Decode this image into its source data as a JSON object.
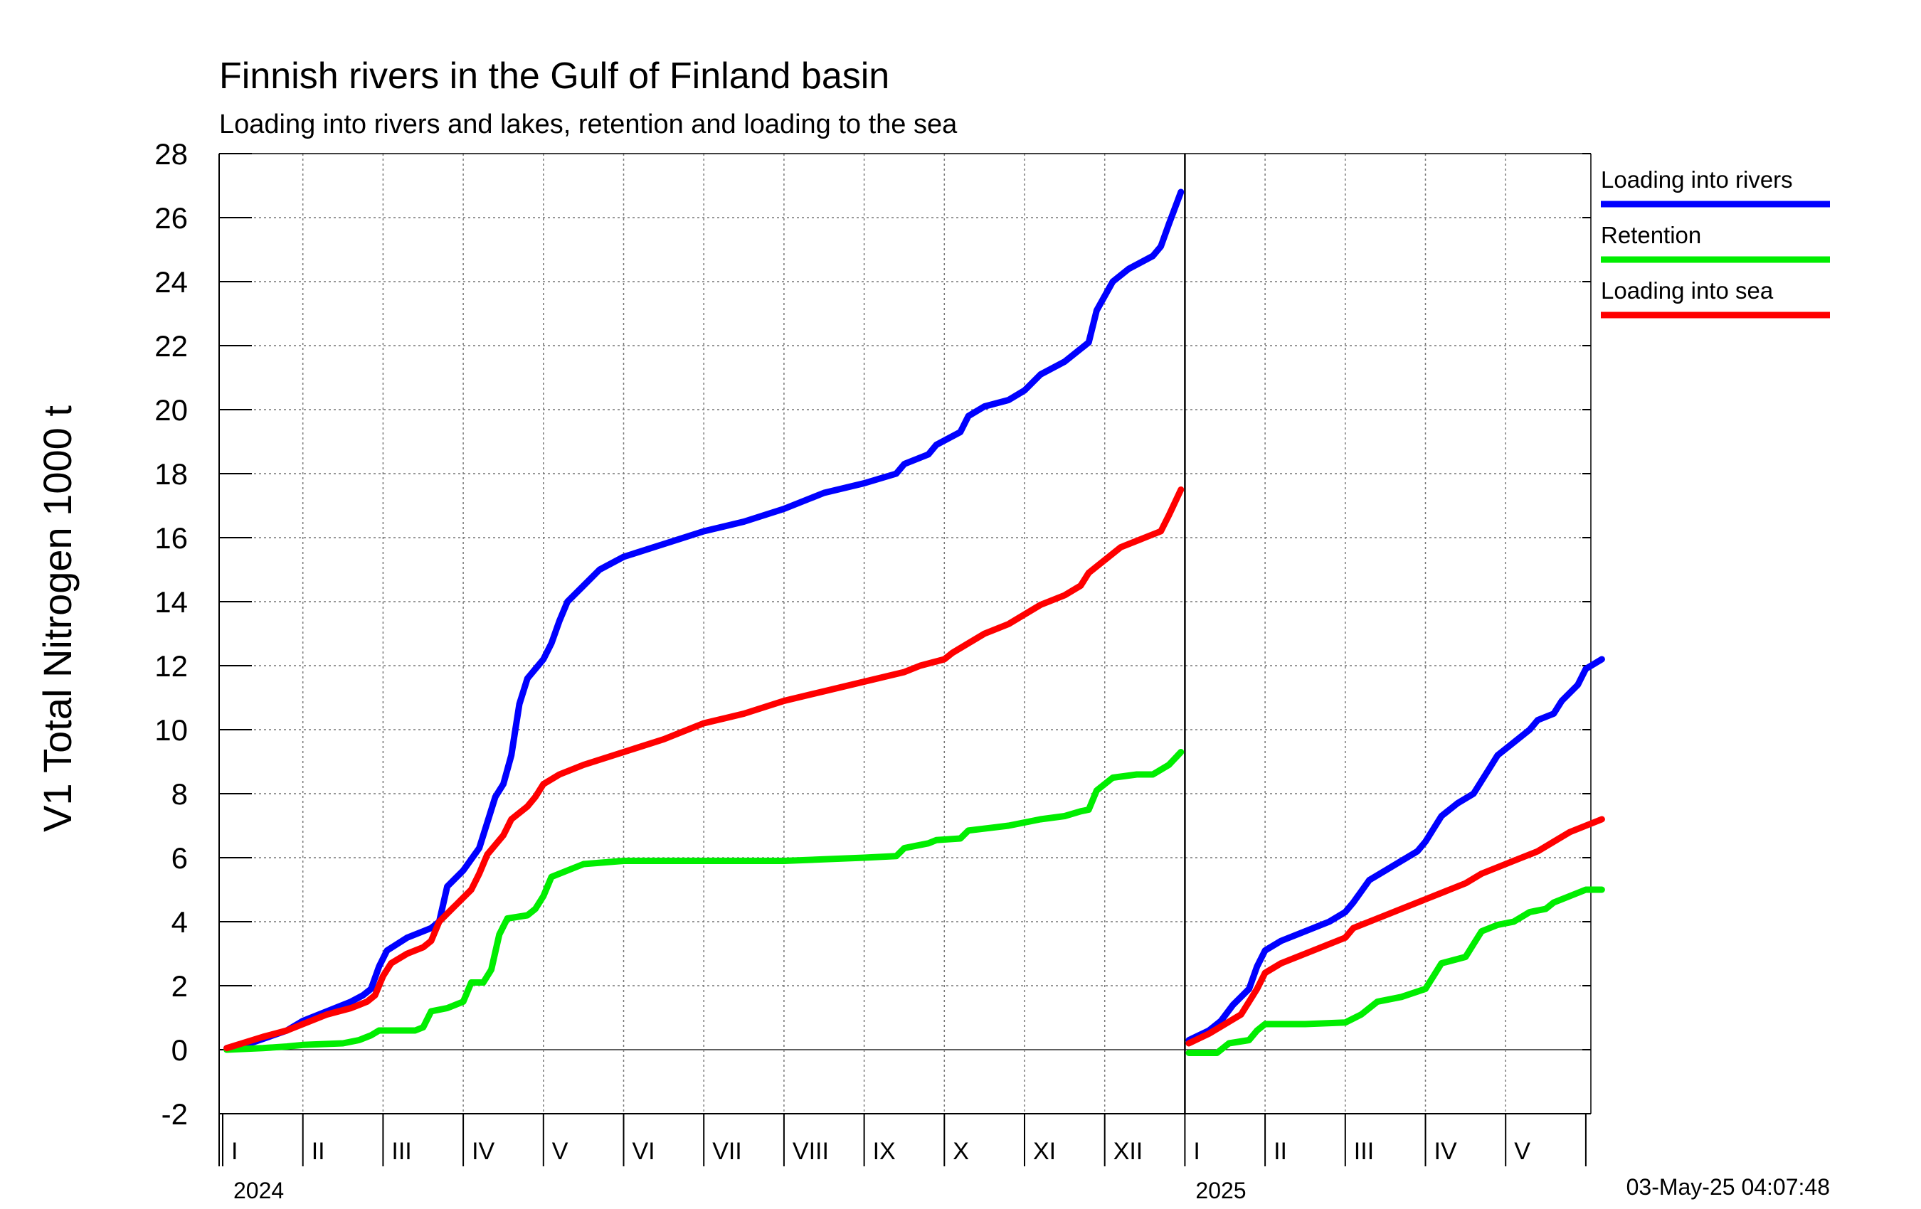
{
  "chart_data": {
    "type": "line",
    "title": "Finnish rivers in the Gulf of Finland basin",
    "subtitle": "Loading into rivers and lakes, retention and loading to the sea",
    "ylabel": "V1 Total Nitrogen 1000 t",
    "ylim": [
      -2,
      28
    ],
    "yticks": [
      -2,
      0,
      2,
      4,
      6,
      8,
      10,
      12,
      14,
      16,
      18,
      20,
      22,
      24,
      26,
      28
    ],
    "grid": true,
    "legend_position": "right",
    "timestamp": "03-May-25 04:07:48",
    "x_unit": "month index from January 2024 (0 = start of January 2024)",
    "xlim": [
      0,
      17.1
    ],
    "month_labels": [
      "I",
      "II",
      "III",
      "IV",
      "V",
      "VI",
      "VII",
      "VIII",
      "IX",
      "X",
      "XI",
      "XII",
      "I",
      "II",
      "III",
      "IV",
      "V"
    ],
    "years": [
      {
        "label": "2024",
        "month_index": 0
      },
      {
        "label": "2025",
        "month_index": 12
      }
    ],
    "series": [
      {
        "name": "Loading into rivers",
        "color": "#0000ff",
        "segments": [
          [
            [
              0.05,
              0.05
            ],
            [
              0.4,
              0.25
            ],
            [
              0.8,
              0.6
            ],
            [
              1.0,
              0.9
            ],
            [
              1.3,
              1.2
            ],
            [
              1.6,
              1.5
            ],
            [
              1.75,
              1.7
            ],
            [
              1.85,
              1.9
            ],
            [
              1.95,
              2.6
            ],
            [
              2.05,
              3.1
            ],
            [
              2.3,
              3.5
            ],
            [
              2.5,
              3.7
            ],
            [
              2.6,
              3.8
            ],
            [
              2.7,
              4.0
            ],
            [
              2.8,
              5.1
            ],
            [
              3.0,
              5.6
            ],
            [
              3.2,
              6.3
            ],
            [
              3.3,
              7.1
            ],
            [
              3.4,
              7.9
            ],
            [
              3.5,
              8.3
            ],
            [
              3.6,
              9.2
            ],
            [
              3.7,
              10.8
            ],
            [
              3.8,
              11.6
            ],
            [
              4.0,
              12.2
            ],
            [
              4.1,
              12.7
            ],
            [
              4.2,
              13.4
            ],
            [
              4.3,
              14.0
            ],
            [
              4.5,
              14.5
            ],
            [
              4.7,
              15.0
            ],
            [
              5.0,
              15.4
            ],
            [
              5.5,
              15.8
            ],
            [
              6.0,
              16.2
            ],
            [
              6.5,
              16.5
            ],
            [
              7.0,
              16.9
            ],
            [
              7.5,
              17.4
            ],
            [
              8.0,
              17.7
            ],
            [
              8.4,
              18.0
            ],
            [
              8.5,
              18.3
            ],
            [
              8.8,
              18.6
            ],
            [
              8.9,
              18.9
            ],
            [
              9.2,
              19.3
            ],
            [
              9.3,
              19.8
            ],
            [
              9.5,
              20.1
            ],
            [
              9.8,
              20.3
            ],
            [
              10.0,
              20.6
            ],
            [
              10.2,
              21.1
            ],
            [
              10.5,
              21.5
            ],
            [
              10.7,
              21.9
            ],
            [
              10.8,
              22.1
            ],
            [
              10.9,
              23.1
            ],
            [
              11.1,
              24.0
            ],
            [
              11.3,
              24.4
            ],
            [
              11.6,
              24.8
            ],
            [
              11.7,
              25.1
            ],
            [
              11.8,
              25.8
            ],
            [
              11.95,
              26.8
            ]
          ],
          [
            [
              12.05,
              0.3
            ],
            [
              12.3,
              0.6
            ],
            [
              12.45,
              0.9
            ],
            [
              12.6,
              1.4
            ],
            [
              12.8,
              1.9
            ],
            [
              12.9,
              2.6
            ],
            [
              13.0,
              3.1
            ],
            [
              13.2,
              3.4
            ],
            [
              13.5,
              3.7
            ],
            [
              13.8,
              4.0
            ],
            [
              14.0,
              4.3
            ],
            [
              14.1,
              4.6
            ],
            [
              14.3,
              5.3
            ],
            [
              14.5,
              5.6
            ],
            [
              14.7,
              5.9
            ],
            [
              14.9,
              6.2
            ],
            [
              15.0,
              6.5
            ],
            [
              15.2,
              7.3
            ],
            [
              15.4,
              7.7
            ],
            [
              15.6,
              8.0
            ],
            [
              15.8,
              8.8
            ],
            [
              15.9,
              9.2
            ],
            [
              16.1,
              9.6
            ],
            [
              16.3,
              10.0
            ],
            [
              16.4,
              10.3
            ],
            [
              16.6,
              10.5
            ],
            [
              16.7,
              10.9
            ],
            [
              16.9,
              11.4
            ],
            [
              17.0,
              11.9
            ],
            [
              17.2,
              12.2
            ]
          ]
        ]
      },
      {
        "name": "Retention",
        "color": "#00ee00",
        "segments": [
          [
            [
              0.05,
              0.0
            ],
            [
              0.5,
              0.05
            ],
            [
              0.8,
              0.1
            ],
            [
              1.0,
              0.15
            ],
            [
              1.5,
              0.2
            ],
            [
              1.7,
              0.3
            ],
            [
              1.85,
              0.45
            ],
            [
              1.95,
              0.6
            ],
            [
              2.2,
              0.6
            ],
            [
              2.4,
              0.6
            ],
            [
              2.5,
              0.7
            ],
            [
              2.6,
              1.2
            ],
            [
              2.8,
              1.3
            ],
            [
              3.0,
              1.5
            ],
            [
              3.1,
              2.1
            ],
            [
              3.25,
              2.1
            ],
            [
              3.35,
              2.5
            ],
            [
              3.45,
              3.6
            ],
            [
              3.55,
              4.1
            ],
            [
              3.8,
              4.2
            ],
            [
              3.9,
              4.4
            ],
            [
              4.0,
              4.8
            ],
            [
              4.1,
              5.4
            ],
            [
              4.3,
              5.6
            ],
            [
              4.5,
              5.8
            ],
            [
              5.0,
              5.9
            ],
            [
              6.0,
              5.9
            ],
            [
              7.0,
              5.9
            ],
            [
              7.5,
              5.95
            ],
            [
              8.0,
              6.0
            ],
            [
              8.4,
              6.05
            ],
            [
              8.5,
              6.3
            ],
            [
              8.8,
              6.45
            ],
            [
              8.9,
              6.55
            ],
            [
              9.2,
              6.6
            ],
            [
              9.3,
              6.85
            ],
            [
              9.8,
              7.0
            ],
            [
              10.0,
              7.1
            ],
            [
              10.2,
              7.2
            ],
            [
              10.5,
              7.3
            ],
            [
              10.7,
              7.45
            ],
            [
              10.8,
              7.5
            ],
            [
              10.9,
              8.1
            ],
            [
              11.1,
              8.5
            ],
            [
              11.4,
              8.6
            ],
            [
              11.6,
              8.6
            ],
            [
              11.8,
              8.9
            ],
            [
              11.95,
              9.3
            ]
          ],
          [
            [
              12.05,
              -0.1
            ],
            [
              12.4,
              -0.1
            ],
            [
              12.55,
              0.2
            ],
            [
              12.8,
              0.3
            ],
            [
              12.9,
              0.6
            ],
            [
              13.0,
              0.8
            ],
            [
              13.5,
              0.8
            ],
            [
              14.0,
              0.85
            ],
            [
              14.2,
              1.1
            ],
            [
              14.4,
              1.5
            ],
            [
              14.7,
              1.65
            ],
            [
              15.0,
              1.9
            ],
            [
              15.1,
              2.3
            ],
            [
              15.2,
              2.7
            ],
            [
              15.5,
              2.9
            ],
            [
              15.6,
              3.3
            ],
            [
              15.7,
              3.7
            ],
            [
              15.9,
              3.9
            ],
            [
              16.1,
              4.0
            ],
            [
              16.3,
              4.3
            ],
            [
              16.5,
              4.4
            ],
            [
              16.6,
              4.6
            ],
            [
              16.8,
              4.8
            ],
            [
              17.0,
              5.0
            ],
            [
              17.2,
              5.0
            ]
          ]
        ]
      },
      {
        "name": "Loading into sea",
        "color": "#ff0000",
        "segments": [
          [
            [
              0.05,
              0.05
            ],
            [
              0.5,
              0.4
            ],
            [
              0.8,
              0.6
            ],
            [
              1.0,
              0.8
            ],
            [
              1.3,
              1.1
            ],
            [
              1.6,
              1.3
            ],
            [
              1.8,
              1.5
            ],
            [
              1.9,
              1.7
            ],
            [
              2.0,
              2.3
            ],
            [
              2.1,
              2.7
            ],
            [
              2.3,
              3.0
            ],
            [
              2.5,
              3.2
            ],
            [
              2.6,
              3.4
            ],
            [
              2.7,
              4.0
            ],
            [
              2.9,
              4.5
            ],
            [
              3.1,
              5.0
            ],
            [
              3.2,
              5.5
            ],
            [
              3.3,
              6.1
            ],
            [
              3.5,
              6.7
            ],
            [
              3.6,
              7.2
            ],
            [
              3.8,
              7.6
            ],
            [
              3.9,
              7.9
            ],
            [
              4.0,
              8.3
            ],
            [
              4.2,
              8.6
            ],
            [
              4.5,
              8.9
            ],
            [
              5.0,
              9.3
            ],
            [
              5.5,
              9.7
            ],
            [
              6.0,
              10.2
            ],
            [
              6.5,
              10.5
            ],
            [
              7.0,
              10.9
            ],
            [
              7.5,
              11.2
            ],
            [
              8.0,
              11.5
            ],
            [
              8.5,
              11.8
            ],
            [
              8.7,
              12.0
            ],
            [
              9.0,
              12.2
            ],
            [
              9.1,
              12.4
            ],
            [
              9.3,
              12.7
            ],
            [
              9.5,
              13.0
            ],
            [
              9.8,
              13.3
            ],
            [
              10.0,
              13.6
            ],
            [
              10.2,
              13.9
            ],
            [
              10.5,
              14.2
            ],
            [
              10.7,
              14.5
            ],
            [
              10.8,
              14.9
            ],
            [
              11.0,
              15.3
            ],
            [
              11.2,
              15.7
            ],
            [
              11.5,
              16.0
            ],
            [
              11.7,
              16.2
            ],
            [
              11.8,
              16.7
            ],
            [
              11.95,
              17.5
            ]
          ],
          [
            [
              12.05,
              0.2
            ],
            [
              12.3,
              0.5
            ],
            [
              12.5,
              0.8
            ],
            [
              12.7,
              1.1
            ],
            [
              12.8,
              1.5
            ],
            [
              12.9,
              1.9
            ],
            [
              13.0,
              2.4
            ],
            [
              13.2,
              2.7
            ],
            [
              13.5,
              3.0
            ],
            [
              13.8,
              3.3
            ],
            [
              14.0,
              3.5
            ],
            [
              14.1,
              3.8
            ],
            [
              14.3,
              4.0
            ],
            [
              14.5,
              4.2
            ],
            [
              14.8,
              4.5
            ],
            [
              15.0,
              4.7
            ],
            [
              15.3,
              5.0
            ],
            [
              15.5,
              5.2
            ],
            [
              15.7,
              5.5
            ],
            [
              16.0,
              5.8
            ],
            [
              16.2,
              6.0
            ],
            [
              16.4,
              6.2
            ],
            [
              16.6,
              6.5
            ],
            [
              16.8,
              6.8
            ],
            [
              17.0,
              7.0
            ],
            [
              17.2,
              7.2
            ]
          ]
        ]
      }
    ]
  }
}
